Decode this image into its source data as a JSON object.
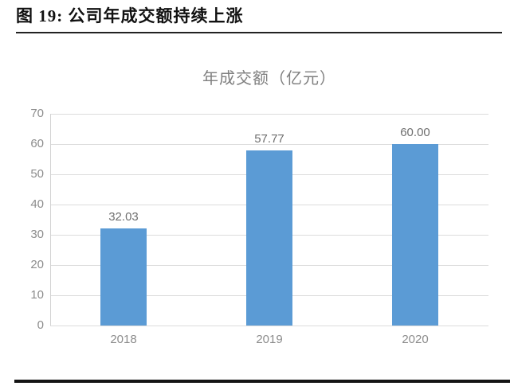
{
  "header": {
    "caption": "图 19: 公司年成交额持续上涨"
  },
  "chart_data": {
    "type": "bar",
    "title": "年成交额（亿元）",
    "categories": [
      "2018",
      "2019",
      "2020"
    ],
    "values": [
      32.03,
      57.77,
      60.0
    ],
    "value_labels": [
      "32.03",
      "57.77",
      "60.00"
    ],
    "xlabel": "",
    "ylabel": "",
    "ylim": [
      0,
      70
    ],
    "ytick_step": 10,
    "grid": "horizontal",
    "legend_position": "none",
    "bar_color": "#5B9BD5",
    "grid_color": "#DCDCDC",
    "axis_line_color": "#D2D2D2",
    "title_color": "#7F7F7F",
    "tick_label_color": "#8C8C8C",
    "value_label_color": "#6E6E6E"
  }
}
